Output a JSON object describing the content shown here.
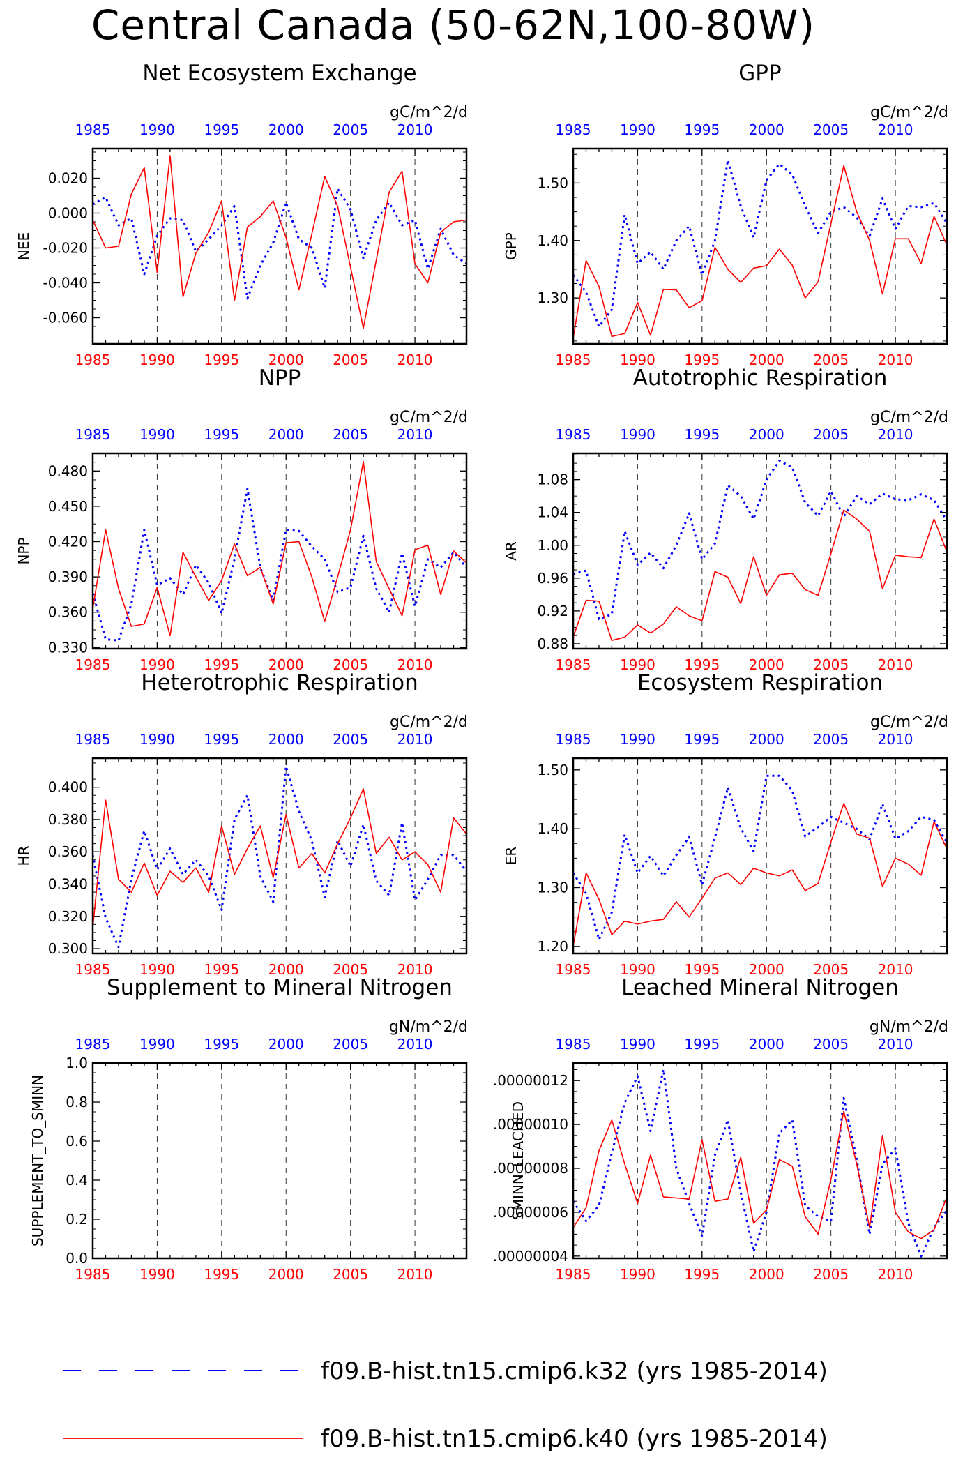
{
  "title": "Central Canada (50-62N,100-80W)",
  "legend": [
    {
      "label": "f09.B-hist.tn15.cmip6.k32 (yrs 1985-2014)",
      "color": "#0000ff",
      "style": "dashed"
    },
    {
      "label": "f09.B-hist.tn15.cmip6.k40 (yrs 1985-2014)",
      "color": "#ff0000",
      "style": "solid"
    }
  ],
  "colors": {
    "series_k32": "#0000ff",
    "series_k40": "#ff0000",
    "grid": "#000000"
  },
  "chart_data": [
    {
      "type": "line",
      "title": "Net Ecosystem Exchange",
      "units": "gC/m^2/d",
      "ylabel": "NEE",
      "xlim": [
        1985,
        2014
      ],
      "ylim": [
        -0.075,
        0.037
      ],
      "yticks": [
        -0.06,
        -0.04,
        -0.02,
        0.0,
        0.02
      ],
      "ytick_labels": [
        "-0.060",
        "-0.040",
        "-0.020",
        "0.000",
        "0.020"
      ],
      "xticks": [
        1985,
        1990,
        1995,
        2000,
        2005,
        2010
      ],
      "x": [
        1985,
        1986,
        1987,
        1988,
        1989,
        1990,
        1991,
        1992,
        1993,
        1994,
        1995,
        1996,
        1997,
        1998,
        1999,
        2000,
        2001,
        2002,
        2003,
        2004,
        2005,
        2006,
        2007,
        2008,
        2009,
        2010,
        2011,
        2012,
        2013,
        2014
      ],
      "series": [
        {
          "name": "f09.B-hist.tn15.cmip6.k32",
          "values": [
            0.005,
            0.009,
            -0.007,
            -0.003,
            -0.035,
            -0.013,
            -0.003,
            -0.004,
            -0.022,
            -0.015,
            -0.007,
            0.004,
            -0.049,
            -0.03,
            -0.017,
            0.006,
            -0.015,
            -0.02,
            -0.043,
            0.014,
            0.002,
            -0.026,
            -0.004,
            0.006,
            -0.007,
            -0.004,
            -0.032,
            -0.009,
            -0.024,
            -0.029
          ]
        },
        {
          "name": "f09.B-hist.tn15.cmip6.k40",
          "values": [
            -0.004,
            -0.02,
            -0.019,
            0.011,
            0.026,
            -0.034,
            0.033,
            -0.048,
            -0.023,
            -0.011,
            0.007,
            -0.05,
            -0.008,
            -0.002,
            0.007,
            -0.014,
            -0.044,
            -0.012,
            0.021,
            0.004,
            -0.031,
            -0.066,
            -0.027,
            0.012,
            0.024,
            -0.029,
            -0.04,
            -0.011,
            -0.005,
            -0.004
          ]
        }
      ]
    },
    {
      "type": "line",
      "title": "GPP",
      "units": "gC/m^2/d",
      "ylabel": "GPP",
      "xlim": [
        1985,
        2014
      ],
      "ylim": [
        1.22,
        1.56
      ],
      "yticks": [
        1.3,
        1.4,
        1.5
      ],
      "ytick_labels": [
        "1.30",
        "1.40",
        "1.50"
      ],
      "xticks": [
        1985,
        1990,
        1995,
        2000,
        2005,
        2010
      ],
      "x": [
        1985,
        1986,
        1987,
        1988,
        1989,
        1990,
        1991,
        1992,
        1993,
        1994,
        1995,
        1996,
        1997,
        1998,
        1999,
        2000,
        2001,
        2002,
        2003,
        2004,
        2005,
        2006,
        2007,
        2008,
        2009,
        2010,
        2011,
        2012,
        2013,
        2014
      ],
      "series": [
        {
          "name": "f09.B-hist.tn15.cmip6.k32",
          "values": [
            1.34,
            1.31,
            1.25,
            1.28,
            1.445,
            1.36,
            1.38,
            1.35,
            1.4,
            1.425,
            1.34,
            1.4,
            1.54,
            1.46,
            1.405,
            1.505,
            1.533,
            1.515,
            1.46,
            1.413,
            1.45,
            1.458,
            1.44,
            1.408,
            1.473,
            1.42,
            1.46,
            1.458,
            1.465,
            1.43
          ]
        },
        {
          "name": "f09.B-hist.tn15.cmip6.k40",
          "values": [
            1.23,
            1.365,
            1.32,
            1.233,
            1.238,
            1.292,
            1.235,
            1.315,
            1.314,
            1.283,
            1.295,
            1.388,
            1.35,
            1.327,
            1.352,
            1.356,
            1.385,
            1.357,
            1.3,
            1.328,
            1.43,
            1.53,
            1.45,
            1.4,
            1.307,
            1.403,
            1.403,
            1.36,
            1.442,
            1.392
          ]
        }
      ]
    },
    {
      "type": "line",
      "title": "NPP",
      "units": "gC/m^2/d",
      "ylabel": "NPP",
      "xlim": [
        1985,
        2014
      ],
      "ylim": [
        0.329,
        0.495
      ],
      "yticks": [
        0.33,
        0.36,
        0.39,
        0.42,
        0.45,
        0.48
      ],
      "ytick_labels": [
        "0.330",
        "0.360",
        "0.390",
        "0.420",
        "0.450",
        "0.480"
      ],
      "xticks": [
        1985,
        1990,
        1995,
        2000,
        2005,
        2010
      ],
      "x": [
        1985,
        1986,
        1987,
        1988,
        1989,
        1990,
        1991,
        1992,
        1993,
        1994,
        1995,
        1996,
        1997,
        1998,
        1999,
        2000,
        2001,
        2002,
        2003,
        2004,
        2005,
        2006,
        2007,
        2008,
        2009,
        2010,
        2011,
        2012,
        2013,
        2014
      ],
      "series": [
        {
          "name": "f09.B-hist.tn15.cmip6.k32",
          "values": [
            0.376,
            0.337,
            0.336,
            0.367,
            0.43,
            0.383,
            0.389,
            0.375,
            0.4,
            0.385,
            0.359,
            0.405,
            0.465,
            0.398,
            0.37,
            0.43,
            0.429,
            0.416,
            0.405,
            0.377,
            0.381,
            0.425,
            0.38,
            0.36,
            0.41,
            0.365,
            0.405,
            0.398,
            0.411,
            0.398
          ]
        },
        {
          "name": "f09.B-hist.tn15.cmip6.k40",
          "values": [
            0.363,
            0.43,
            0.38,
            0.348,
            0.35,
            0.381,
            0.34,
            0.411,
            0.39,
            0.37,
            0.387,
            0.418,
            0.391,
            0.398,
            0.367,
            0.419,
            0.42,
            0.39,
            0.352,
            0.39,
            0.43,
            0.488,
            0.403,
            0.38,
            0.357,
            0.413,
            0.417,
            0.375,
            0.412,
            0.402
          ]
        }
      ]
    },
    {
      "type": "line",
      "title": "Autotrophic Respiration",
      "units": "gC/m^2/d",
      "ylabel": "AR",
      "xlim": [
        1985,
        2014
      ],
      "ylim": [
        0.874,
        1.112
      ],
      "yticks": [
        0.88,
        0.92,
        0.96,
        1.0,
        1.04,
        1.08
      ],
      "ytick_labels": [
        "0.88",
        "0.92",
        "0.96",
        "1.00",
        "1.04",
        "1.08"
      ],
      "xticks": [
        1985,
        1990,
        1995,
        2000,
        2005,
        2010
      ],
      "x": [
        1985,
        1986,
        1987,
        1988,
        1989,
        1990,
        1991,
        1992,
        1993,
        1994,
        1995,
        1996,
        1997,
        1998,
        1999,
        2000,
        2001,
        2002,
        2003,
        2004,
        2005,
        2006,
        2007,
        2008,
        2009,
        2010,
        2011,
        2012,
        2013,
        2014
      ],
      "series": [
        {
          "name": "f09.B-hist.tn15.cmip6.k32",
          "values": [
            0.965,
            0.969,
            0.91,
            0.916,
            1.017,
            0.976,
            0.991,
            0.972,
            1.0,
            1.039,
            0.983,
            1.002,
            1.073,
            1.06,
            1.032,
            1.08,
            1.103,
            1.095,
            1.052,
            1.036,
            1.066,
            1.035,
            1.06,
            1.05,
            1.063,
            1.056,
            1.055,
            1.062,
            1.055,
            1.03
          ]
        },
        {
          "name": "f09.B-hist.tn15.cmip6.k40",
          "values": [
            0.888,
            0.933,
            0.932,
            0.884,
            0.888,
            0.903,
            0.893,
            0.904,
            0.925,
            0.914,
            0.908,
            0.968,
            0.961,
            0.929,
            0.986,
            0.939,
            0.964,
            0.966,
            0.946,
            0.939,
            0.99,
            1.043,
            1.032,
            1.017,
            0.947,
            0.988,
            0.986,
            0.985,
            1.032,
            0.992
          ]
        }
      ]
    },
    {
      "type": "line",
      "title": "Heterotrophic Respiration",
      "units": "gC/m^2/d",
      "ylabel": "HR",
      "xlim": [
        1985,
        2014
      ],
      "ylim": [
        0.297,
        0.418
      ],
      "yticks": [
        0.3,
        0.32,
        0.34,
        0.36,
        0.38,
        0.4
      ],
      "ytick_labels": [
        "0.300",
        "0.320",
        "0.340",
        "0.360",
        "0.380",
        "0.400"
      ],
      "xticks": [
        1985,
        1990,
        1995,
        2000,
        2005,
        2010
      ],
      "x": [
        1985,
        1986,
        1987,
        1988,
        1989,
        1990,
        1991,
        1992,
        1993,
        1994,
        1995,
        1996,
        1997,
        1998,
        1999,
        2000,
        2001,
        2002,
        2003,
        2004,
        2005,
        2006,
        2007,
        2008,
        2009,
        2010,
        2011,
        2012,
        2013,
        2014
      ],
      "series": [
        {
          "name": "f09.B-hist.tn15.cmip6.k32",
          "values": [
            0.358,
            0.319,
            0.301,
            0.343,
            0.373,
            0.349,
            0.362,
            0.346,
            0.355,
            0.345,
            0.324,
            0.38,
            0.395,
            0.345,
            0.329,
            0.413,
            0.385,
            0.367,
            0.332,
            0.367,
            0.351,
            0.377,
            0.342,
            0.333,
            0.378,
            0.33,
            0.343,
            0.358,
            0.358,
            0.348
          ]
        },
        {
          "name": "f09.B-hist.tn15.cmip6.k40",
          "values": [
            0.313,
            0.392,
            0.343,
            0.335,
            0.353,
            0.333,
            0.348,
            0.341,
            0.35,
            0.335,
            0.376,
            0.346,
            0.362,
            0.376,
            0.344,
            0.383,
            0.35,
            0.359,
            0.347,
            0.365,
            0.381,
            0.399,
            0.359,
            0.369,
            0.355,
            0.36,
            0.352,
            0.335,
            0.381,
            0.371
          ]
        }
      ]
    },
    {
      "type": "line",
      "title": "Ecosystem Respiration",
      "units": "gC/m^2/d",
      "ylabel": "ER",
      "xlim": [
        1985,
        2014
      ],
      "ylim": [
        1.188,
        1.52
      ],
      "yticks": [
        1.2,
        1.3,
        1.4,
        1.5
      ],
      "ytick_labels": [
        "1.20",
        "1.30",
        "1.40",
        "1.50"
      ],
      "xticks": [
        1985,
        1990,
        1995,
        2000,
        2005,
        2010
      ],
      "x": [
        1985,
        1986,
        1987,
        1988,
        1989,
        1990,
        1991,
        1992,
        1993,
        1994,
        1995,
        1996,
        1997,
        1998,
        1999,
        2000,
        2001,
        2002,
        2003,
        2004,
        2005,
        2006,
        2007,
        2008,
        2009,
        2010,
        2011,
        2012,
        2013,
        2014
      ],
      "series": [
        {
          "name": "f09.B-hist.tn15.cmip6.k32",
          "values": [
            1.325,
            1.29,
            1.212,
            1.258,
            1.39,
            1.325,
            1.354,
            1.32,
            1.355,
            1.386,
            1.305,
            1.385,
            1.47,
            1.401,
            1.362,
            1.49,
            1.49,
            1.465,
            1.387,
            1.403,
            1.42,
            1.41,
            1.4,
            1.382,
            1.442,
            1.383,
            1.396,
            1.42,
            1.415,
            1.376
          ]
        },
        {
          "name": "f09.B-hist.tn15.cmip6.k40",
          "values": [
            1.2,
            1.325,
            1.28,
            1.22,
            1.243,
            1.238,
            1.243,
            1.246,
            1.276,
            1.25,
            1.282,
            1.316,
            1.325,
            1.305,
            1.333,
            1.325,
            1.32,
            1.33,
            1.295,
            1.307,
            1.378,
            1.443,
            1.391,
            1.384,
            1.302,
            1.35,
            1.34,
            1.321,
            1.412,
            1.366
          ]
        }
      ]
    },
    {
      "type": "line",
      "title": "Supplement to Mineral Nitrogen",
      "units": "gN/m^2/d",
      "ylabel": "SUPPLEMENT_TO_SMINN",
      "xlim": [
        1985,
        2014
      ],
      "ylim": [
        0,
        1.0
      ],
      "yticks": [
        0.0,
        0.2,
        0.4,
        0.6,
        0.8,
        1.0
      ],
      "ytick_labels": [
        "0.0",
        "0.2",
        "0.4",
        "0.6",
        "0.8",
        "1.0"
      ],
      "xticks": [
        1985,
        1990,
        1995,
        2000,
        2005,
        2010
      ],
      "x": [],
      "series": []
    },
    {
      "type": "line",
      "title": "Leached Mineral Nitrogen",
      "units": "gN/m^2/d",
      "ylabel": "SMINN_LEACHED",
      "xlim": [
        1985,
        2014
      ],
      "ylim": [
        3.9e-08,
        1.28e-07
      ],
      "yticks": [
        4e-08,
        6e-08,
        8e-08,
        1e-07,
        1.2e-07
      ],
      "ytick_labels": [
        ".00000004",
        ".00000006",
        ".00000008",
        ".00000010",
        ".00000012"
      ],
      "xticks": [
        1985,
        1990,
        1995,
        2000,
        2005,
        2010
      ],
      "x": [
        1985,
        1986,
        1987,
        1988,
        1989,
        1990,
        1991,
        1992,
        1993,
        1994,
        1995,
        1996,
        1997,
        1998,
        1999,
        2000,
        2001,
        2002,
        2003,
        2004,
        2005,
        2006,
        2007,
        2008,
        2009,
        2010,
        2011,
        2012,
        2013,
        2014
      ],
      "series": [
        {
          "name": "f09.B-hist.tn15.cmip6.k32",
          "values": [
            6.5e-08,
            5.6e-08,
            6.3e-08,
            8.7e-08,
            1.1e-07,
            1.22e-07,
            9.7e-08,
            1.25e-07,
            8e-08,
            6.4e-08,
            4.9e-08,
            8.6e-08,
            1.02e-07,
            6.9e-08,
            4.2e-08,
            6e-08,
            9.6e-08,
            1.02e-07,
            6.3e-08,
            5.8e-08,
            5.6e-08,
            1.12e-07,
            8.4e-08,
            5e-08,
            8.2e-08,
            8.9e-08,
            5.5e-08,
            4e-08,
            5.3e-08,
            6.1e-08
          ]
        },
        {
          "name": "f09.B-hist.tn15.cmip6.k40",
          "values": [
            5.3e-08,
            6.2e-08,
            8.8e-08,
            1.02e-07,
            8.2e-08,
            6.4e-08,
            8.6e-08,
            6.7e-08,
            6.65e-08,
            6.6e-08,
            9.3e-08,
            6.5e-08,
            6.6e-08,
            8.5e-08,
            5.5e-08,
            6.1e-08,
            8.4e-08,
            8.1e-08,
            5.8e-08,
            5e-08,
            7.5e-08,
            1.06e-07,
            8.2e-08,
            5.3e-08,
            9.5e-08,
            6e-08,
            5.1e-08,
            4.8e-08,
            5.2e-08,
            6.7e-08
          ]
        }
      ]
    }
  ]
}
